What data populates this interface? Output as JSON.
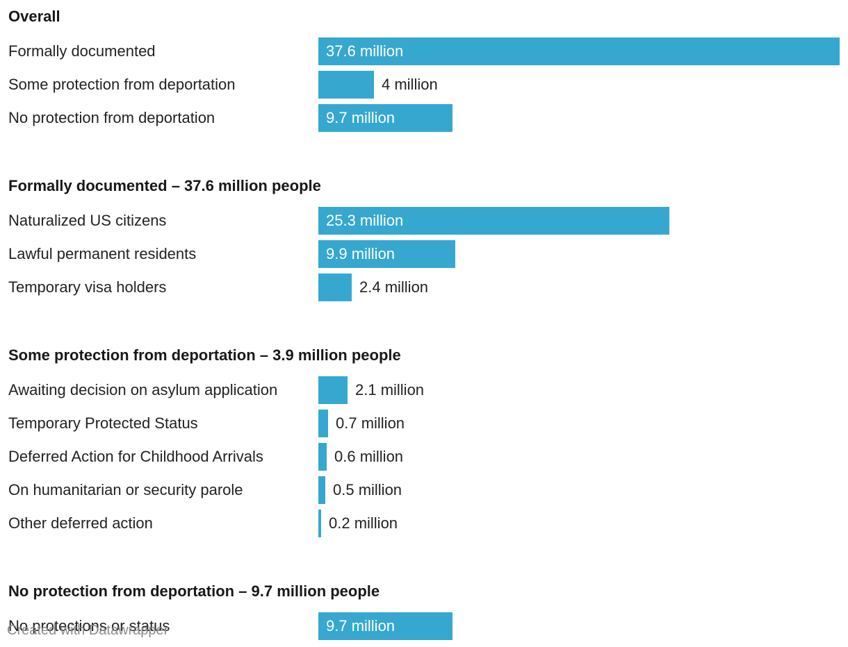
{
  "chart_data": {
    "type": "bar",
    "orientation": "horizontal",
    "bar_color": "#36a8cf",
    "axis_max": 37.6,
    "unit": "million",
    "groups": [
      {
        "title": "Overall",
        "rows": [
          {
            "label": "Formally documented",
            "value": 37.6,
            "value_label": "37.6 million"
          },
          {
            "label": "Some protection from deportation",
            "value": 4,
            "value_label": "4 million"
          },
          {
            "label": "No protection from deportation",
            "value": 9.7,
            "value_label": "9.7 million"
          }
        ]
      },
      {
        "title": "Formally documented – 37.6 million people",
        "rows": [
          {
            "label": "Naturalized US citizens",
            "value": 25.3,
            "value_label": "25.3 million"
          },
          {
            "label": "Lawful permanent residents",
            "value": 9.9,
            "value_label": "9.9 million"
          },
          {
            "label": "Temporary visa holders",
            "value": 2.4,
            "value_label": "2.4 million"
          }
        ]
      },
      {
        "title": "Some protection from deportation – 3.9 million people",
        "rows": [
          {
            "label": "Awaiting decision on asylum application",
            "value": 2.1,
            "value_label": "2.1 million"
          },
          {
            "label": "Temporary Protected Status",
            "value": 0.7,
            "value_label": "0.7 million"
          },
          {
            "label": "Deferred Action for Childhood Arrivals",
            "value": 0.6,
            "value_label": "0.6 million"
          },
          {
            "label": "On humanitarian or security parole",
            "value": 0.5,
            "value_label": "0.5 million"
          },
          {
            "label": "Other deferred action",
            "value": 0.2,
            "value_label": "0.2 million"
          }
        ]
      },
      {
        "title": "No protection from deportation – 9.7 million people",
        "rows": [
          {
            "label": "No protections or status",
            "value": 9.7,
            "value_label": "9.7 million"
          }
        ]
      }
    ]
  },
  "footer": {
    "credit": "Created with Datawrapper"
  }
}
